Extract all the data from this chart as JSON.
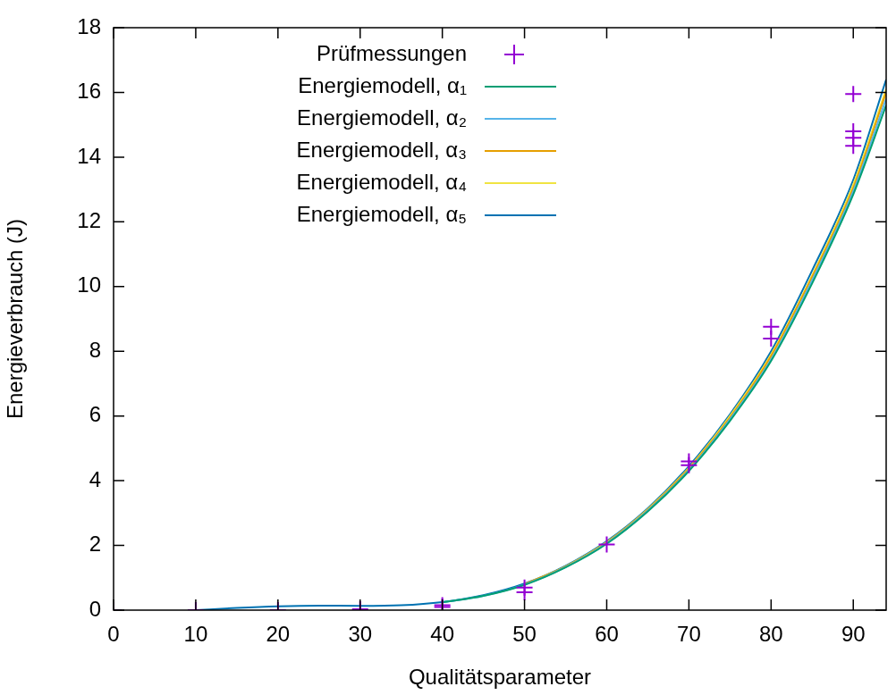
{
  "chart_data": {
    "type": "line",
    "xlabel": "Qualitätsparameter",
    "ylabel": "Energieverbrauch (J)",
    "xlim": [
      0,
      94
    ],
    "xticks": [
      0,
      10,
      20,
      30,
      40,
      50,
      60,
      70,
      80,
      90
    ],
    "ylim": [
      0,
      18
    ],
    "yticks": [
      0,
      2,
      4,
      6,
      8,
      10,
      12,
      14,
      16,
      18
    ],
    "grid": false,
    "legend": "top left",
    "line_style": "solid",
    "series": [
      {
        "name": "Prüfmessungen",
        "type": "scatter",
        "marker": "cross",
        "color": "#9400d3",
        "x": [
          0,
          10,
          20,
          30,
          40,
          40,
          50,
          50,
          60,
          70,
          70,
          80,
          80,
          90,
          90,
          90,
          90
        ],
        "values": [
          0,
          0,
          0,
          0.03,
          0.15,
          0.1,
          0.55,
          0.7,
          2.03,
          4.6,
          4.48,
          8.76,
          8.39,
          15.95,
          14.8,
          14.6,
          14.35
        ]
      },
      {
        "name": "Energiemodell, α₁",
        "color": "#009e73",
        "x": [
          40,
          45,
          50,
          55,
          60,
          65,
          70,
          75,
          80,
          85,
          90,
          94
        ],
        "values": [
          0.24,
          0.44,
          0.78,
          1.32,
          2.05,
          3.05,
          4.3,
          5.85,
          7.7,
          10.1,
          12.85,
          15.6
        ]
      },
      {
        "name": "Energiemodell, α₂",
        "color": "#56b4e9",
        "x": [
          40,
          45,
          50,
          55,
          60,
          65,
          70,
          75,
          80,
          85,
          90,
          94
        ],
        "values": [
          0.24,
          0.44,
          0.79,
          1.33,
          2.07,
          3.08,
          4.33,
          5.9,
          7.75,
          10.2,
          12.95,
          15.8
        ]
      },
      {
        "name": "Energiemodell, α₃",
        "color": "#e69f00",
        "x": [
          50,
          55,
          60,
          65,
          70,
          75,
          80,
          85,
          90,
          94
        ],
        "values": [
          0.8,
          1.34,
          2.09,
          3.1,
          4.37,
          5.95,
          7.85,
          10.3,
          13.05,
          16.0
        ]
      },
      {
        "name": "Energiemodell, α₄",
        "color": "#f0e442",
        "x": [
          50,
          55,
          60,
          65,
          70,
          75,
          80,
          85,
          90,
          94
        ],
        "values": [
          0.8,
          1.35,
          2.1,
          3.12,
          4.4,
          6.0,
          7.9,
          10.35,
          13.15,
          16.1
        ]
      },
      {
        "name": "Energiemodell, α₅",
        "color": "#0072b2",
        "x": [
          10,
          15,
          20,
          25,
          30,
          35,
          40,
          45,
          50,
          55,
          60,
          65,
          70,
          75,
          80,
          85,
          90,
          94
        ],
        "values": [
          0,
          0.07,
          0.12,
          0.14,
          0.13,
          0.15,
          0.25,
          0.46,
          0.82,
          1.37,
          2.13,
          3.15,
          4.45,
          6.05,
          8.0,
          10.5,
          13.3,
          16.4
        ]
      }
    ]
  }
}
